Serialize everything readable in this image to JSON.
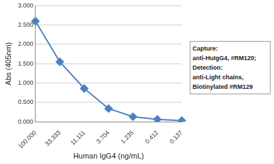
{
  "chart_data": {
    "type": "line",
    "x_label": "Human IgG4 (ng/mL)",
    "y_label": "Abs (405nm)",
    "categories": [
      "100.000",
      "33.333",
      "11.111",
      "3.704",
      "1.235",
      "0.412",
      "0.137"
    ],
    "values": [
      2.6,
      1.55,
      0.86,
      0.34,
      0.13,
      0.06,
      0.03
    ],
    "color": "#4f81bd",
    "marker": "diamond",
    "line_style": "solid",
    "ylim": [
      0,
      3
    ],
    "yticks": [
      {
        "value": 0,
        "label": "0.000"
      },
      {
        "value": 0.5,
        "label": "0.500"
      },
      {
        "value": 1,
        "label": "1.000"
      },
      {
        "value": 1.5,
        "label": "1.500"
      },
      {
        "value": 2,
        "label": "2.000"
      },
      {
        "value": 2.5,
        "label": "2.500"
      },
      {
        "value": 3,
        "label": "3.000"
      }
    ],
    "grid": true,
    "annotations": [
      "Capture:",
      "anti-HuIgG4, #RM120;",
      "Detection:",
      "anti-Light chains,",
      "Biotinylated #RM129"
    ]
  }
}
